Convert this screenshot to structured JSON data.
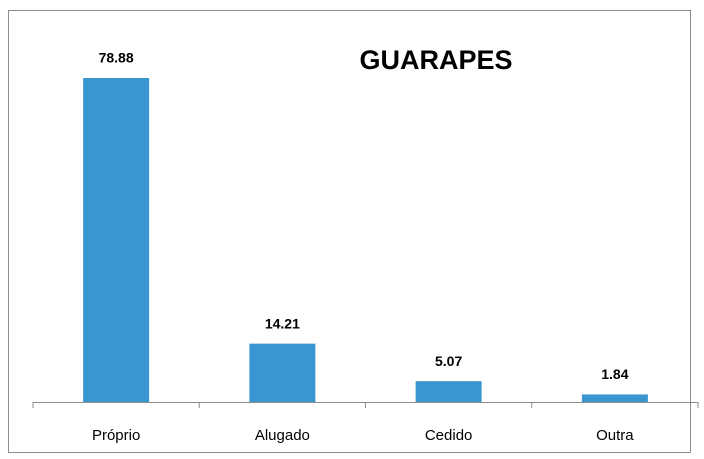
{
  "chart_data": {
    "type": "bar",
    "title": "GUARAPES",
    "categories": [
      "Próprio",
      "Alugado",
      "Cedido",
      "Outra"
    ],
    "values": [
      78.88,
      14.21,
      5.07,
      1.84
    ],
    "color": "#3a96d0"
  }
}
